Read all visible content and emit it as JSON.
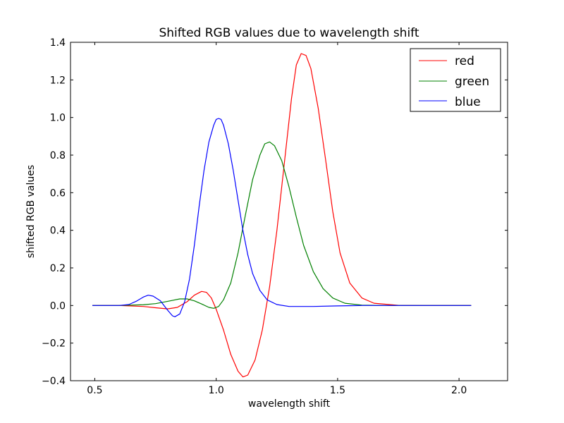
{
  "chart_data": {
    "type": "line",
    "title": "Shifted RGB values due to wavelength shift",
    "xlabel": "wavelength shift",
    "ylabel": "shifted RGB values",
    "xlim": [
      0.4,
      2.2
    ],
    "ylim": [
      -0.4,
      1.4
    ],
    "xticks": [
      0.5,
      1.0,
      1.5,
      2.0
    ],
    "xtick_labels": [
      "0.5",
      "1.0",
      "1.5",
      "2.0"
    ],
    "yticks": [
      -0.4,
      -0.2,
      0.0,
      0.2,
      0.4,
      0.6,
      0.8,
      1.0,
      1.2,
      1.4
    ],
    "ytick_labels": [
      "−0.4",
      "−0.2",
      "0.0",
      "0.2",
      "0.4",
      "0.6",
      "0.8",
      "1.0",
      "1.2",
      "1.4"
    ],
    "grid": false,
    "legend": "top-right",
    "series": [
      {
        "name": "red",
        "color": "#ff0000",
        "points": [
          [
            0.49,
            0.0
          ],
          [
            0.6,
            0.0
          ],
          [
            0.7,
            -0.005
          ],
          [
            0.75,
            -0.012
          ],
          [
            0.8,
            -0.018
          ],
          [
            0.84,
            -0.01
          ],
          [
            0.88,
            0.02
          ],
          [
            0.91,
            0.055
          ],
          [
            0.94,
            0.075
          ],
          [
            0.96,
            0.07
          ],
          [
            0.98,
            0.04
          ],
          [
            1.0,
            -0.02
          ],
          [
            1.03,
            -0.13
          ],
          [
            1.06,
            -0.26
          ],
          [
            1.09,
            -0.35
          ],
          [
            1.11,
            -0.38
          ],
          [
            1.13,
            -0.37
          ],
          [
            1.16,
            -0.29
          ],
          [
            1.19,
            -0.13
          ],
          [
            1.22,
            0.1
          ],
          [
            1.25,
            0.4
          ],
          [
            1.28,
            0.75
          ],
          [
            1.31,
            1.1
          ],
          [
            1.33,
            1.28
          ],
          [
            1.35,
            1.34
          ],
          [
            1.37,
            1.33
          ],
          [
            1.39,
            1.26
          ],
          [
            1.42,
            1.05
          ],
          [
            1.45,
            0.78
          ],
          [
            1.48,
            0.5
          ],
          [
            1.51,
            0.28
          ],
          [
            1.55,
            0.12
          ],
          [
            1.6,
            0.04
          ],
          [
            1.65,
            0.012
          ],
          [
            1.75,
            0.001
          ],
          [
            1.85,
            0.0
          ],
          [
            2.05,
            0.0
          ]
        ]
      },
      {
        "name": "green",
        "color": "#008000",
        "points": [
          [
            0.49,
            0.0
          ],
          [
            0.6,
            0.0
          ],
          [
            0.7,
            0.004
          ],
          [
            0.75,
            0.01
          ],
          [
            0.8,
            0.022
          ],
          [
            0.85,
            0.035
          ],
          [
            0.88,
            0.035
          ],
          [
            0.91,
            0.025
          ],
          [
            0.94,
            0.008
          ],
          [
            0.97,
            -0.01
          ],
          [
            0.99,
            -0.015
          ],
          [
            1.01,
            -0.005
          ],
          [
            1.03,
            0.03
          ],
          [
            1.06,
            0.12
          ],
          [
            1.09,
            0.28
          ],
          [
            1.12,
            0.48
          ],
          [
            1.15,
            0.67
          ],
          [
            1.18,
            0.8
          ],
          [
            1.2,
            0.86
          ],
          [
            1.22,
            0.87
          ],
          [
            1.24,
            0.85
          ],
          [
            1.27,
            0.77
          ],
          [
            1.3,
            0.63
          ],
          [
            1.33,
            0.47
          ],
          [
            1.36,
            0.32
          ],
          [
            1.4,
            0.18
          ],
          [
            1.44,
            0.09
          ],
          [
            1.48,
            0.04
          ],
          [
            1.53,
            0.012
          ],
          [
            1.6,
            0.002
          ],
          [
            1.7,
            0.0
          ],
          [
            2.05,
            0.0
          ]
        ]
      },
      {
        "name": "blue",
        "color": "#0000ff",
        "points": [
          [
            0.49,
            0.0
          ],
          [
            0.6,
            0.0
          ],
          [
            0.64,
            0.005
          ],
          [
            0.67,
            0.022
          ],
          [
            0.7,
            0.045
          ],
          [
            0.72,
            0.055
          ],
          [
            0.74,
            0.05
          ],
          [
            0.77,
            0.025
          ],
          [
            0.8,
            -0.025
          ],
          [
            0.82,
            -0.055
          ],
          [
            0.83,
            -0.06
          ],
          [
            0.85,
            -0.045
          ],
          [
            0.87,
            0.02
          ],
          [
            0.89,
            0.14
          ],
          [
            0.91,
            0.32
          ],
          [
            0.93,
            0.53
          ],
          [
            0.95,
            0.72
          ],
          [
            0.97,
            0.87
          ],
          [
            0.99,
            0.96
          ],
          [
            1.0,
            0.99
          ],
          [
            1.01,
            0.995
          ],
          [
            1.02,
            0.99
          ],
          [
            1.03,
            0.96
          ],
          [
            1.05,
            0.86
          ],
          [
            1.07,
            0.72
          ],
          [
            1.09,
            0.56
          ],
          [
            1.11,
            0.4
          ],
          [
            1.13,
            0.27
          ],
          [
            1.15,
            0.17
          ],
          [
            1.18,
            0.08
          ],
          [
            1.21,
            0.03
          ],
          [
            1.25,
            0.005
          ],
          [
            1.3,
            -0.005
          ],
          [
            1.4,
            -0.005
          ],
          [
            1.5,
            -0.002
          ],
          [
            1.6,
            0.0
          ],
          [
            2.05,
            0.0
          ]
        ]
      }
    ]
  }
}
